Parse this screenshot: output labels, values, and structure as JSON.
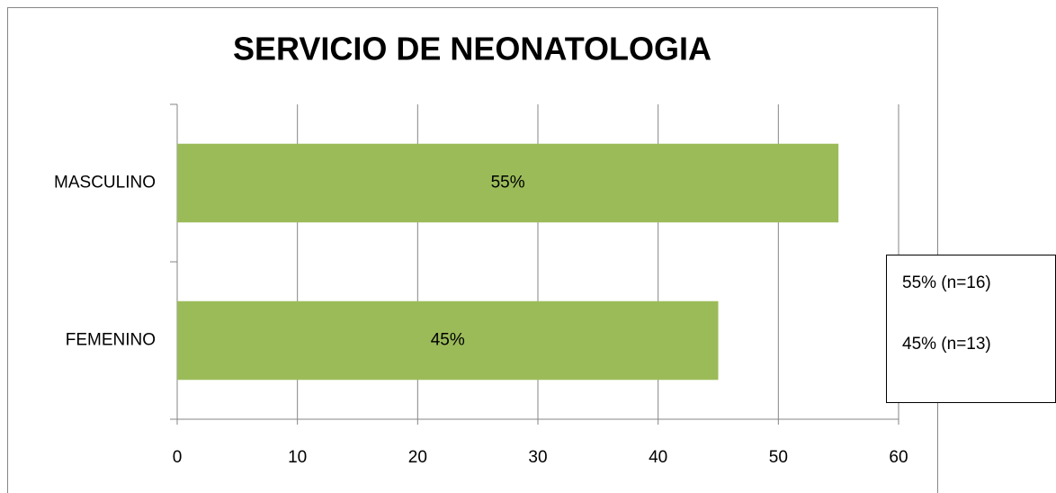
{
  "chart_data": {
    "type": "bar",
    "orientation": "horizontal",
    "title": "SERVICIO DE NEONATOLOGIA",
    "categories": [
      "MASCULINO",
      "FEMENINO"
    ],
    "values": [
      55,
      45
    ],
    "value_labels": [
      "55%",
      "45%"
    ],
    "color": "#9bbb59",
    "xlim": [
      0,
      60
    ],
    "xticks": [
      0,
      10,
      20,
      30,
      40,
      50,
      60
    ],
    "grid": true,
    "annotations": [
      "55% (n=16)",
      "45% (n=13)"
    ]
  }
}
